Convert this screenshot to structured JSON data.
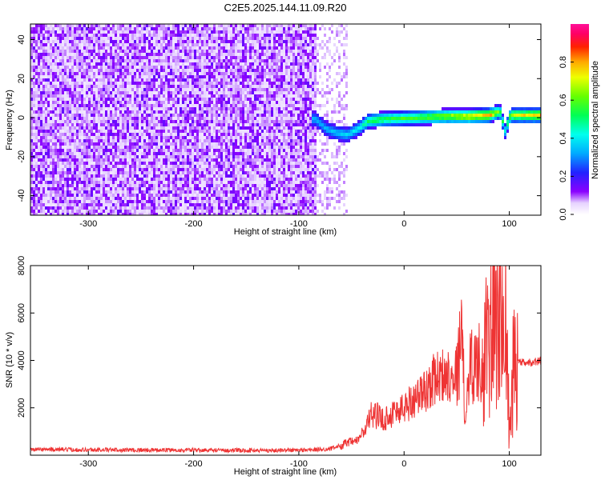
{
  "colors": {
    "spectrogram_low": "#ffffff",
    "spectrogram_mid": "#7a00ff",
    "snr_line": "#ee3333",
    "axis": "#000000"
  },
  "chart_data": [
    {
      "type": "heatmap",
      "title": "C2E5.2025.144.11.09.R20",
      "xlabel": "Height of straight line (km)",
      "ylabel": "Frequency (Hz)",
      "xlim": [
        -355,
        130
      ],
      "ylim": [
        -50,
        48
      ],
      "x_ticks": [
        -300,
        -200,
        -100,
        0,
        100
      ],
      "y_ticks": [
        -40,
        -20,
        0,
        20,
        40
      ],
      "colorbar": {
        "label": "Normalized spectral amplitude",
        "range": [
          0.0,
          1.0
        ],
        "ticks": [
          0.0,
          0.2,
          0.4,
          0.6,
          0.8
        ],
        "colormap": "rainbow (white-violet-blue-cyan-green-yellow-red-magenta)"
      },
      "description_points": {
        "noise_region_x": [
          -355,
          -85
        ],
        "noise_amplitude": 0.1,
        "signal_band": {
          "x": [
            -85,
            -75,
            -65,
            -55,
            -45,
            -35,
            -20,
            0,
            20,
            40,
            60,
            80,
            90,
            95,
            100,
            130
          ],
          "freq_hz": [
            0,
            -5,
            -7,
            -8,
            -5,
            -1,
            0,
            0.5,
            1,
            1.5,
            1.5,
            2,
            4,
            -6,
            2,
            2
          ],
          "amplitude": [
            0.25,
            0.25,
            0.28,
            0.3,
            0.35,
            0.5,
            0.55,
            0.55,
            0.6,
            0.7,
            0.8,
            0.85,
            0.6,
            0.4,
            0.7,
            0.85
          ]
        }
      }
    },
    {
      "type": "line",
      "title": "",
      "xlabel": "Height of straight line (km)",
      "ylabel": "SNR (10 * v/v)",
      "xlim": [
        -355,
        130
      ],
      "ylim": [
        0,
        8000
      ],
      "x_ticks": [
        -300,
        -200,
        -100,
        0,
        100
      ],
      "y_ticks": [
        2000,
        4000,
        6000,
        8000
      ],
      "series": [
        {
          "x": [
            -355,
            -300,
            -250,
            -200,
            -150,
            -100,
            -70,
            -55,
            -45,
            -38,
            -30,
            -20,
            -10,
            0,
            10,
            20,
            30,
            40,
            50,
            55,
            58,
            62,
            70,
            75,
            80,
            85,
            90,
            95,
            100,
            105,
            110,
            120,
            130
          ],
          "values": [
            250,
            230,
            220,
            210,
            200,
            210,
            260,
            500,
            600,
            1000,
            1800,
            1500,
            1800,
            2000,
            2400,
            2700,
            3300,
            3400,
            3500,
            5000,
            1500,
            3800,
            3900,
            4000,
            4500,
            6000,
            5000,
            8000,
            1000,
            3800,
            3900,
            3900,
            4000
          ]
        }
      ]
    }
  ]
}
